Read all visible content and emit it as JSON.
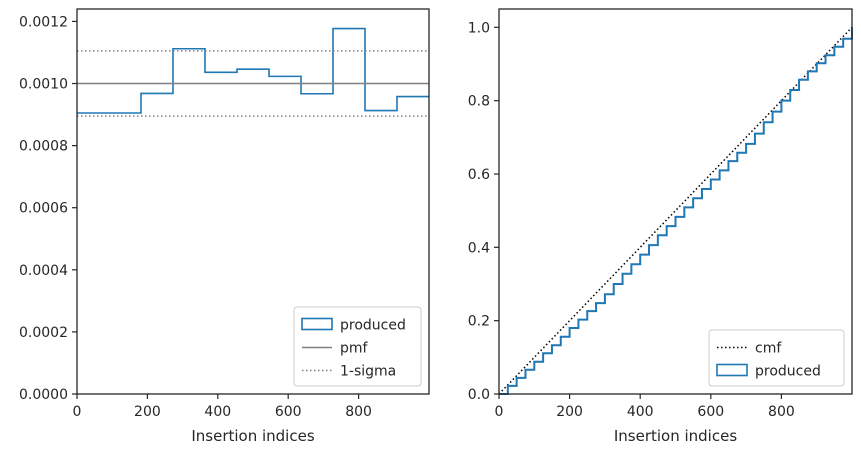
{
  "chart_data": [
    {
      "type": "histogram",
      "xlabel": "Insertion indices",
      "ylabel": "",
      "xlim": [
        0,
        1000
      ],
      "ylim": [
        0,
        0.00124
      ],
      "xticks": [
        "0",
        "200",
        "400",
        "600",
        "800"
      ],
      "yticks": [
        "0.0000",
        "0.0002",
        "0.0004",
        "0.0006",
        "0.0008",
        "0.0010",
        "0.0012"
      ],
      "xtick_values": [
        0,
        200,
        400,
        600,
        800
      ],
      "ytick_values": [
        0,
        0.0002,
        0.0004,
        0.0006,
        0.0008,
        0.001,
        0.0012
      ],
      "grid": false,
      "legend_position": "bottom-right",
      "bin_edges": [
        0,
        90.9,
        181.8,
        272.7,
        363.6,
        454.5,
        545.5,
        636.4,
        727.3,
        818.2,
        909.1,
        1000
      ],
      "series": [
        {
          "name": "produced",
          "type": "step-histogram",
          "color": "#1f77b4",
          "values": [
            0.000905,
            0.000905,
            0.000968,
            0.001112,
            0.001036,
            0.001046,
            0.001023,
            0.000967,
            0.001177,
            0.000913,
            0.000958
          ]
        },
        {
          "name": "pmf",
          "type": "hline",
          "color": "#808080",
          "style": "solid",
          "y": 0.001
        },
        {
          "name": "1-sigma",
          "type": "hline-pair",
          "color": "#808080",
          "style": "dotted",
          "y": [
            0.000895,
            0.001105
          ]
        }
      ]
    },
    {
      "type": "line",
      "xlabel": "Insertion indices",
      "ylabel": "",
      "xlim": [
        0,
        1000
      ],
      "ylim": [
        0,
        1.05
      ],
      "xticks": [
        "0",
        "200",
        "400",
        "600",
        "800"
      ],
      "yticks": [
        "0.0",
        "0.2",
        "0.4",
        "0.6",
        "0.8",
        "1.0"
      ],
      "xtick_values": [
        0,
        200,
        400,
        600,
        800
      ],
      "ytick_values": [
        0,
        0.2,
        0.4,
        0.6,
        0.8,
        1.0
      ],
      "grid": false,
      "legend_position": "bottom-right",
      "series": [
        {
          "name": "cmf",
          "type": "line",
          "color": "#000000",
          "style": "dotted",
          "x": [
            0,
            1000
          ],
          "y": [
            0,
            1.0
          ]
        },
        {
          "name": "produced",
          "type": "step-cumulative",
          "color": "#1f77b4",
          "x": [
            0,
            25,
            50,
            75,
            100,
            125,
            150,
            175,
            200,
            225,
            250,
            275,
            300,
            325,
            350,
            375,
            400,
            425,
            450,
            475,
            500,
            525,
            550,
            575,
            600,
            625,
            650,
            675,
            700,
            725,
            750,
            775,
            800,
            825,
            850,
            875,
            900,
            925,
            950,
            975,
            1000
          ],
          "y": [
            0,
            0.022,
            0.044,
            0.066,
            0.088,
            0.111,
            0.133,
            0.156,
            0.18,
            0.203,
            0.226,
            0.248,
            0.272,
            0.3,
            0.328,
            0.354,
            0.38,
            0.406,
            0.433,
            0.458,
            0.483,
            0.509,
            0.534,
            0.559,
            0.585,
            0.61,
            0.635,
            0.658,
            0.682,
            0.71,
            0.741,
            0.77,
            0.8,
            0.829,
            0.857,
            0.88,
            0.902,
            0.924,
            0.947,
            0.969,
            1.0
          ]
        }
      ]
    }
  ]
}
